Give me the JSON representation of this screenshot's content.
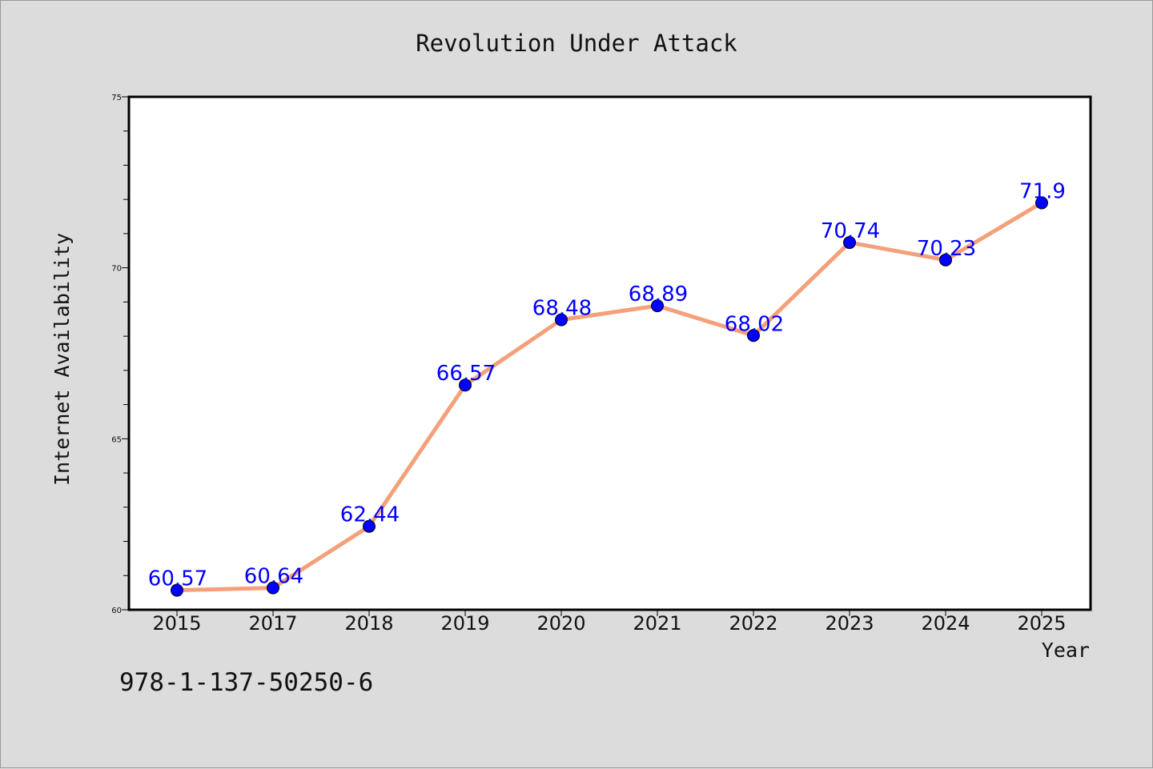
{
  "chart_data": {
    "type": "line",
    "title": "Revolution Under Attack",
    "xlabel": "Year",
    "ylabel": "Internet Availability",
    "categories": [
      "2015",
      "2017",
      "2018",
      "2019",
      "2020",
      "2021",
      "2022",
      "2023",
      "2024",
      "2025"
    ],
    "series": [
      {
        "values": [
          60.57,
          60.64,
          62.44,
          66.57,
          68.48,
          68.89,
          68.02,
          70.74,
          70.23,
          71.9
        ],
        "labels": [
          "60.57",
          "60.64",
          "62.44",
          "66.57",
          "68.48",
          "68.89",
          "68.02",
          "70.74",
          "70.23",
          "71.9"
        ],
        "line_color": "#f4a07a",
        "marker_color": "#0000ff"
      }
    ],
    "ylim": [
      60,
      75
    ],
    "yticks": [
      "60",
      "65",
      "70",
      "75"
    ],
    "y_minor_step": 1,
    "grid": false,
    "legend": "none"
  },
  "footer": {
    "isbn": "978-1-137-50250-6"
  }
}
